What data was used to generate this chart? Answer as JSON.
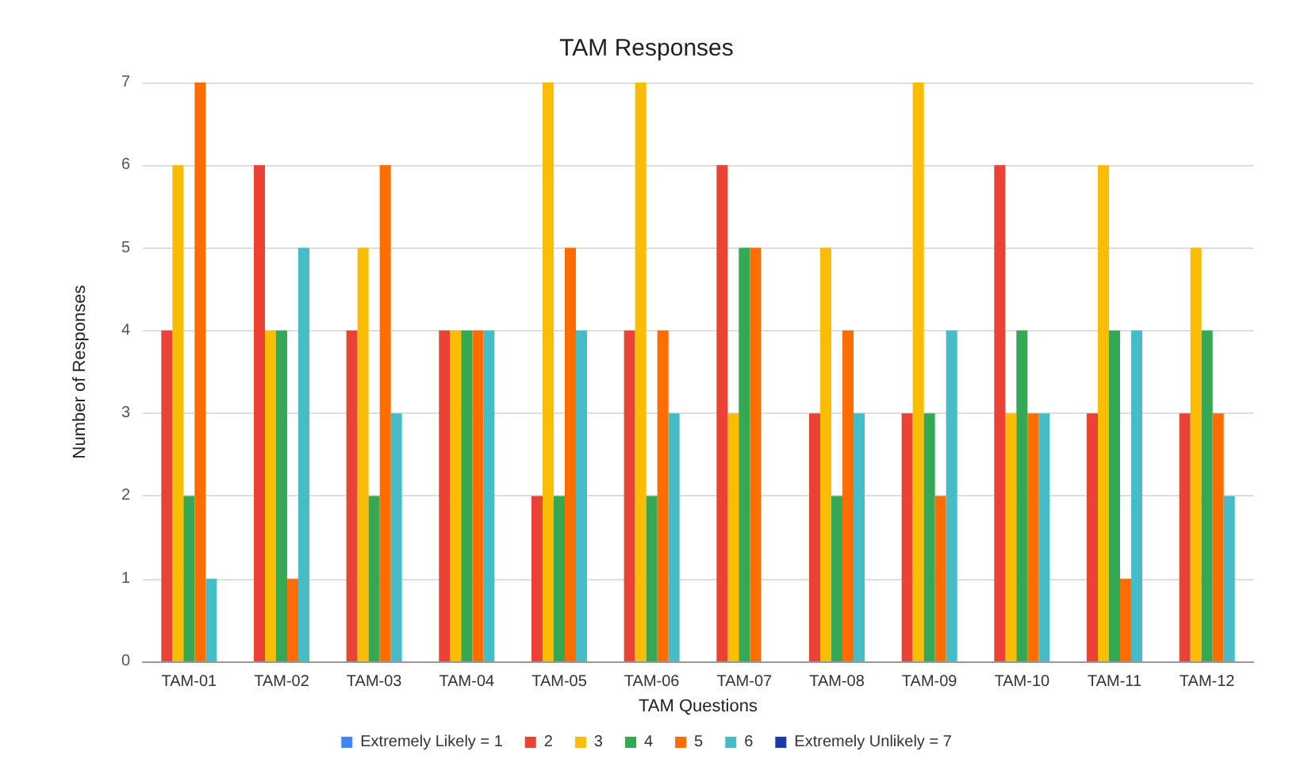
{
  "chart_data": {
    "type": "bar",
    "title": "TAM Responses",
    "xlabel": "TAM Questions",
    "ylabel": "Number of Responses",
    "categories": [
      "TAM-01",
      "TAM-02",
      "TAM-03",
      "TAM-04",
      "TAM-05",
      "TAM-06",
      "TAM-07",
      "TAM-08",
      "TAM-09",
      "TAM-10",
      "TAM-11",
      "TAM-12"
    ],
    "series": [
      {
        "name": "Extremely Likely = 1",
        "color": "#4285f4",
        "values": [
          0,
          0,
          0,
          0,
          0,
          0,
          0,
          0,
          0,
          0,
          0,
          0
        ]
      },
      {
        "name": "2",
        "color": "#ea4335",
        "values": [
          4,
          6,
          4,
          4,
          2,
          4,
          6,
          3,
          3,
          6,
          3,
          3
        ]
      },
      {
        "name": "3",
        "color": "#fbbc04",
        "values": [
          6,
          4,
          5,
          4,
          7,
          7,
          3,
          5,
          7,
          3,
          6,
          5
        ]
      },
      {
        "name": "4",
        "color": "#34a853",
        "values": [
          2,
          4,
          2,
          4,
          2,
          2,
          5,
          2,
          3,
          4,
          4,
          4
        ]
      },
      {
        "name": "5",
        "color": "#ff6d01",
        "values": [
          7,
          1,
          6,
          4,
          5,
          4,
          5,
          4,
          2,
          3,
          1,
          3
        ]
      },
      {
        "name": "6",
        "color": "#46bdc6",
        "values": [
          1,
          5,
          3,
          4,
          4,
          3,
          0,
          3,
          4,
          3,
          4,
          2
        ]
      },
      {
        "name": "Extremely Unlikely = 7",
        "color": "#1c3aa9",
        "values": [
          0,
          0,
          0,
          0,
          0,
          0,
          0,
          0,
          0,
          0,
          0,
          0
        ]
      }
    ],
    "ylim": [
      0,
      7
    ],
    "yticks": [
      0,
      1,
      2,
      3,
      4,
      5,
      6,
      7
    ],
    "grid": "y",
    "legend": "bottom"
  }
}
